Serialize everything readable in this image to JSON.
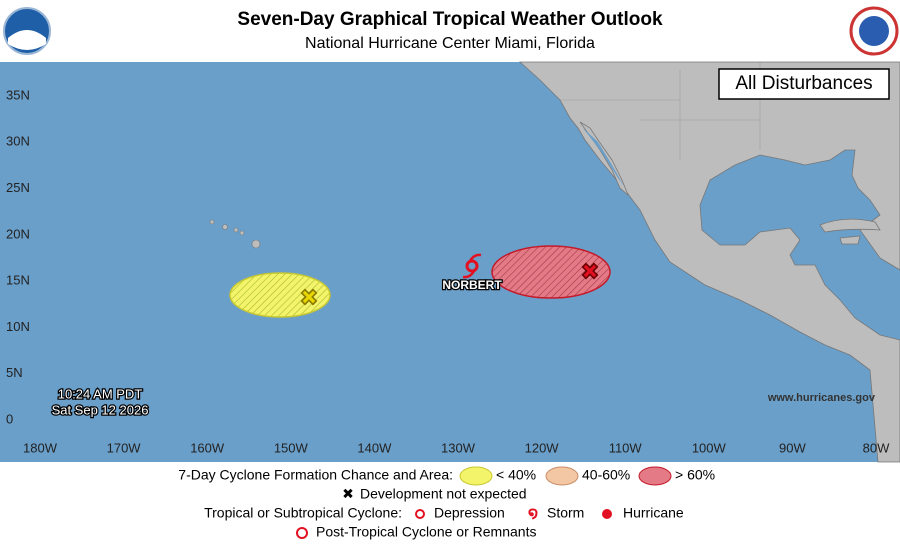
{
  "header": {
    "title": "Seven-Day Graphical Tropical Weather Outlook",
    "subtitle": "National Hurricane Center  Miami, Florida"
  },
  "map": {
    "panel_label": "All Disturbances",
    "lat_labels": [
      "35N",
      "30N",
      "25N",
      "20N",
      "15N",
      "10N",
      "5N",
      "0"
    ],
    "lon_labels": [
      "180W",
      "170W",
      "160W",
      "150W",
      "140W",
      "130W",
      "120W",
      "110W",
      "100W",
      "90W",
      "80W"
    ],
    "storm_label": "NORBERT",
    "timestamp": [
      "10:24 AM PDT",
      "Sat Sep 12 2026"
    ],
    "website": "www.hurricanes.gov"
  },
  "legend": {
    "formation_title": "7-Day Cyclone Formation Chance and Area:",
    "chances": [
      "< 40%",
      "40-60%",
      "> 60%"
    ],
    "not_expected": "Development not expected",
    "cyclone_title": "Tropical or Subtropical Cyclone:",
    "cyclone_types": [
      "Depression",
      "Storm",
      "Hurricane"
    ],
    "post_tropical": "Post-Tropical Cyclone or Remnants"
  }
}
